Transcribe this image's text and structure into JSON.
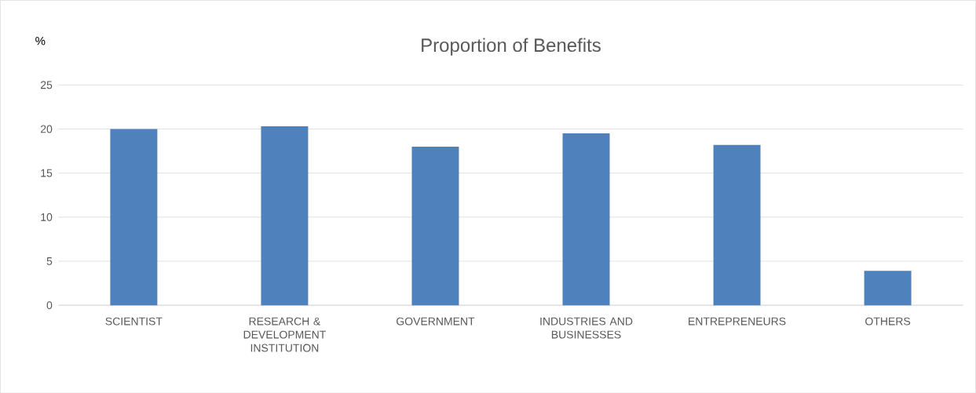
{
  "chart_data": {
    "type": "bar",
    "title": "Proportion of Benefits",
    "ylabel": "%",
    "categories": [
      "SCIENTIST",
      "RESEARCH & DEVELOPMENT INSTITUTION",
      "GOVERNMENT",
      "INDUSTRIES AND BUSINESSES",
      "ENTREPRENEURS",
      "OTHERS"
    ],
    "values": [
      20,
      20.3,
      18,
      19.5,
      18.2,
      3.9
    ],
    "color": "#4f81bd",
    "ylim": [
      0,
      25
    ],
    "yticks": [
      0,
      5,
      10,
      15,
      20,
      25
    ],
    "grid": "y"
  }
}
